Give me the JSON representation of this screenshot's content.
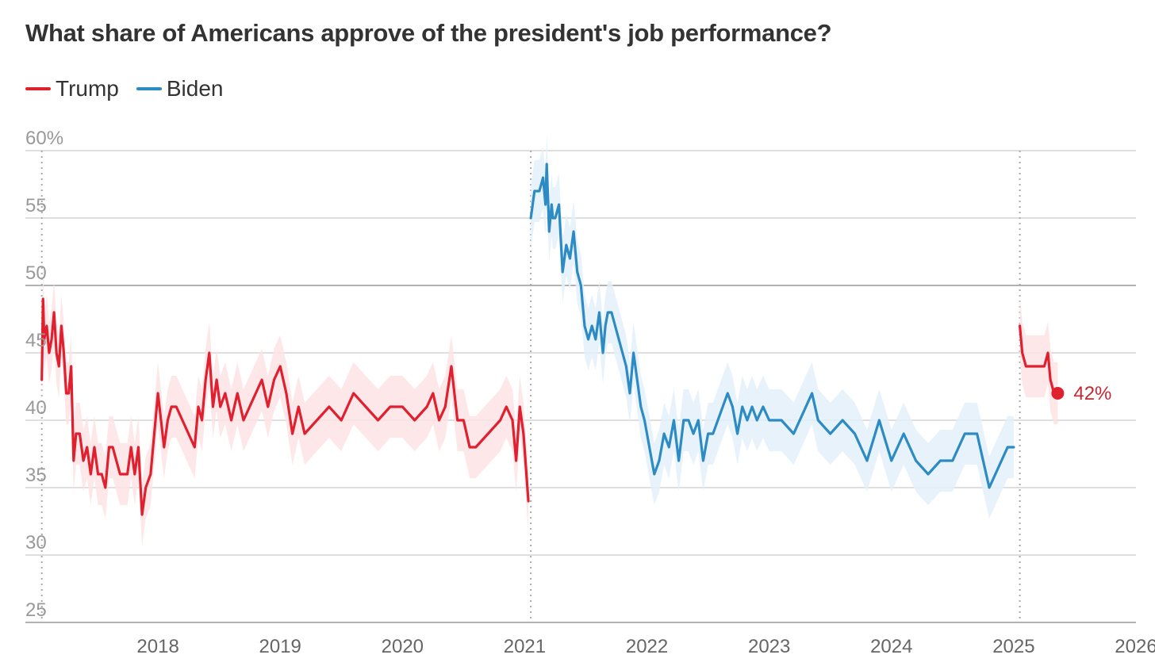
{
  "chart_data": {
    "type": "line",
    "title": "What share of Americans approve of the president's job performance?",
    "xlabel": "",
    "ylabel": "",
    "ylim": [
      25,
      60
    ],
    "xlim": [
      2017.0,
      2026.0
    ],
    "y_ticks": [
      25,
      30,
      35,
      40,
      45,
      50,
      55,
      60
    ],
    "y_tick_labels": [
      "25",
      "30",
      "35",
      "40",
      "45",
      "50",
      "55",
      "60%"
    ],
    "x_ticks": [
      2018,
      2019,
      2020,
      2021,
      2022,
      2023,
      2024,
      2025,
      2026
    ],
    "x_tick_labels": [
      "2018",
      "2019",
      "2020",
      "2021",
      "2022",
      "2023",
      "2024",
      "2025",
      "2026"
    ],
    "inauguration_markers": [
      2017.05,
      2021.05,
      2025.05
    ],
    "grid": true,
    "legend_position": "top-left",
    "colors": {
      "trump": "#e0202e",
      "biden": "#2d8bc4",
      "grid": "#cccccc",
      "axis_text": "#999999"
    },
    "end_label": "42%",
    "series": [
      {
        "name": "Trump",
        "color": "#e0202e",
        "band_color": "#fde3e4",
        "segments": [
          {
            "x": [
              2017.05,
              2017.06,
              2017.07,
              2017.09,
              2017.11,
              2017.13,
              2017.15,
              2017.17,
              2017.19,
              2017.21,
              2017.23,
              2017.25,
              2017.27,
              2017.29,
              2017.31,
              2017.33,
              2017.36,
              2017.39,
              2017.42,
              2017.45,
              2017.48,
              2017.51,
              2017.54,
              2017.57,
              2017.6,
              2017.63,
              2017.66,
              2017.69,
              2017.72,
              2017.75,
              2017.78,
              2017.81,
              2017.84,
              2017.87,
              2017.9,
              2017.94,
              2018.0,
              2018.05,
              2018.08,
              2018.11,
              2018.15,
              2018.2,
              2018.25,
              2018.3,
              2018.33,
              2018.36,
              2018.39,
              2018.42,
              2018.45,
              2018.48,
              2018.51,
              2018.55,
              2018.6,
              2018.65,
              2018.7,
              2018.75,
              2018.8,
              2018.85,
              2018.9,
              2018.95,
              2019.0,
              2019.05,
              2019.1,
              2019.15,
              2019.2,
              2019.3,
              2019.4,
              2019.5,
              2019.6,
              2019.7,
              2019.8,
              2019.9,
              2020.0,
              2020.1,
              2020.2,
              2020.25,
              2020.3,
              2020.35,
              2020.4,
              2020.45,
              2020.5,
              2020.55,
              2020.6,
              2020.7,
              2020.8,
              2020.85,
              2020.9,
              2020.93,
              2020.96,
              2020.99,
              2021.03
            ],
            "y": [
              43,
              49,
              46,
              47,
              45,
              46,
              48,
              45,
              44,
              47,
              45,
              42,
              42,
              44,
              37,
              39,
              39,
              37,
              38,
              36,
              38,
              36,
              36,
              35,
              38,
              38,
              37,
              36,
              36,
              36,
              38,
              36,
              38,
              33,
              35,
              36,
              42,
              38,
              40,
              41,
              41,
              40,
              39,
              38,
              41,
              40,
              43,
              45,
              41,
              43,
              41,
              42,
              40,
              42,
              40,
              41,
              42,
              43,
              41,
              43,
              44,
              42,
              39,
              41,
              39,
              40,
              41,
              40,
              42,
              41,
              40,
              41,
              41,
              40,
              41,
              42,
              40,
              41,
              44,
              40,
              40,
              38,
              38,
              39,
              40,
              41,
              40,
              37,
              41,
              39,
              34
            ]
          },
          {
            "x": [
              2025.05,
              2025.07,
              2025.1,
              2025.15,
              2025.2,
              2025.25,
              2025.28,
              2025.3,
              2025.33,
              2025.36
            ],
            "y": [
              47,
              45,
              44,
              44,
              44,
              44,
              45,
              43,
              42,
              42
            ]
          }
        ]
      },
      {
        "name": "Biden",
        "color": "#2d8bc4",
        "band_color": "#e3f0fa",
        "segments": [
          {
            "x": [
              2021.05,
              2021.08,
              2021.12,
              2021.15,
              2021.17,
              2021.18,
              2021.2,
              2021.22,
              2021.23,
              2021.25,
              2021.28,
              2021.31,
              2021.34,
              2021.37,
              2021.4,
              2021.43,
              2021.46,
              2021.49,
              2021.52,
              2021.55,
              2021.58,
              2021.61,
              2021.64,
              2021.66,
              2021.68,
              2021.71,
              2021.74,
              2021.77,
              2021.8,
              2021.83,
              2021.86,
              2021.89,
              2021.92,
              2021.95,
              2021.98,
              2022.02,
              2022.06,
              2022.1,
              2022.14,
              2022.18,
              2022.22,
              2022.26,
              2022.3,
              2022.34,
              2022.38,
              2022.42,
              2022.46,
              2022.5,
              2022.54,
              2022.58,
              2022.62,
              2022.66,
              2022.7,
              2022.74,
              2022.78,
              2022.82,
              2022.86,
              2022.9,
              2022.95,
              2023.0,
              2023.1,
              2023.2,
              2023.3,
              2023.35,
              2023.4,
              2023.5,
              2023.6,
              2023.7,
              2023.8,
              2023.9,
              2024.0,
              2024.1,
              2024.2,
              2024.3,
              2024.4,
              2024.5,
              2024.6,
              2024.7,
              2024.8,
              2024.9,
              2024.95,
              2025.0
            ],
            "y": [
              55,
              57,
              57,
              58,
              56,
              59,
              54,
              56,
              55,
              55,
              56,
              51,
              53,
              52,
              54,
              51,
              50,
              47,
              46,
              47,
              46,
              48,
              45,
              47,
              48,
              48,
              47,
              46,
              45,
              44,
              42,
              45,
              43,
              41,
              40,
              38,
              36,
              37,
              39,
              38,
              40,
              37,
              40,
              40,
              39,
              40,
              37,
              39,
              39,
              40,
              41,
              42,
              41,
              39,
              41,
              40,
              41,
              40,
              41,
              40,
              40,
              39,
              41,
              42,
              40,
              39,
              40,
              39,
              37,
              40,
              37,
              39,
              37,
              36,
              37,
              37,
              39,
              39,
              35,
              37,
              38,
              38
            ]
          }
        ]
      }
    ]
  }
}
